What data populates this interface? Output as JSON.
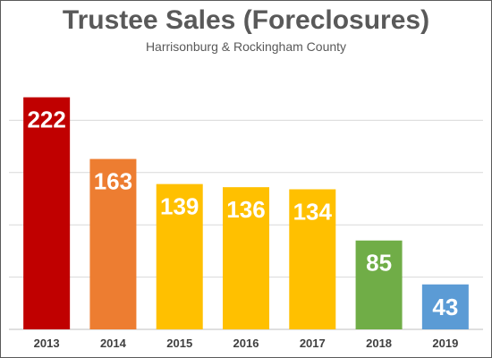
{
  "chart_data": {
    "type": "bar",
    "title": "Trustee Sales (Foreclosures)",
    "subtitle": "Harrisonburg & Rockingham County",
    "categories": [
      "2013",
      "2014",
      "2015",
      "2016",
      "2017",
      "2018",
      "2019"
    ],
    "values": [
      222,
      163,
      139,
      136,
      134,
      85,
      43
    ],
    "colors": [
      "#c00000",
      "#ed7d31",
      "#ffc000",
      "#ffc000",
      "#ffc000",
      "#70ad47",
      "#5b9bd5"
    ],
    "xlabel": "",
    "ylabel": "",
    "ylim": [
      0,
      250
    ],
    "grid": true,
    "legend": "none"
  }
}
